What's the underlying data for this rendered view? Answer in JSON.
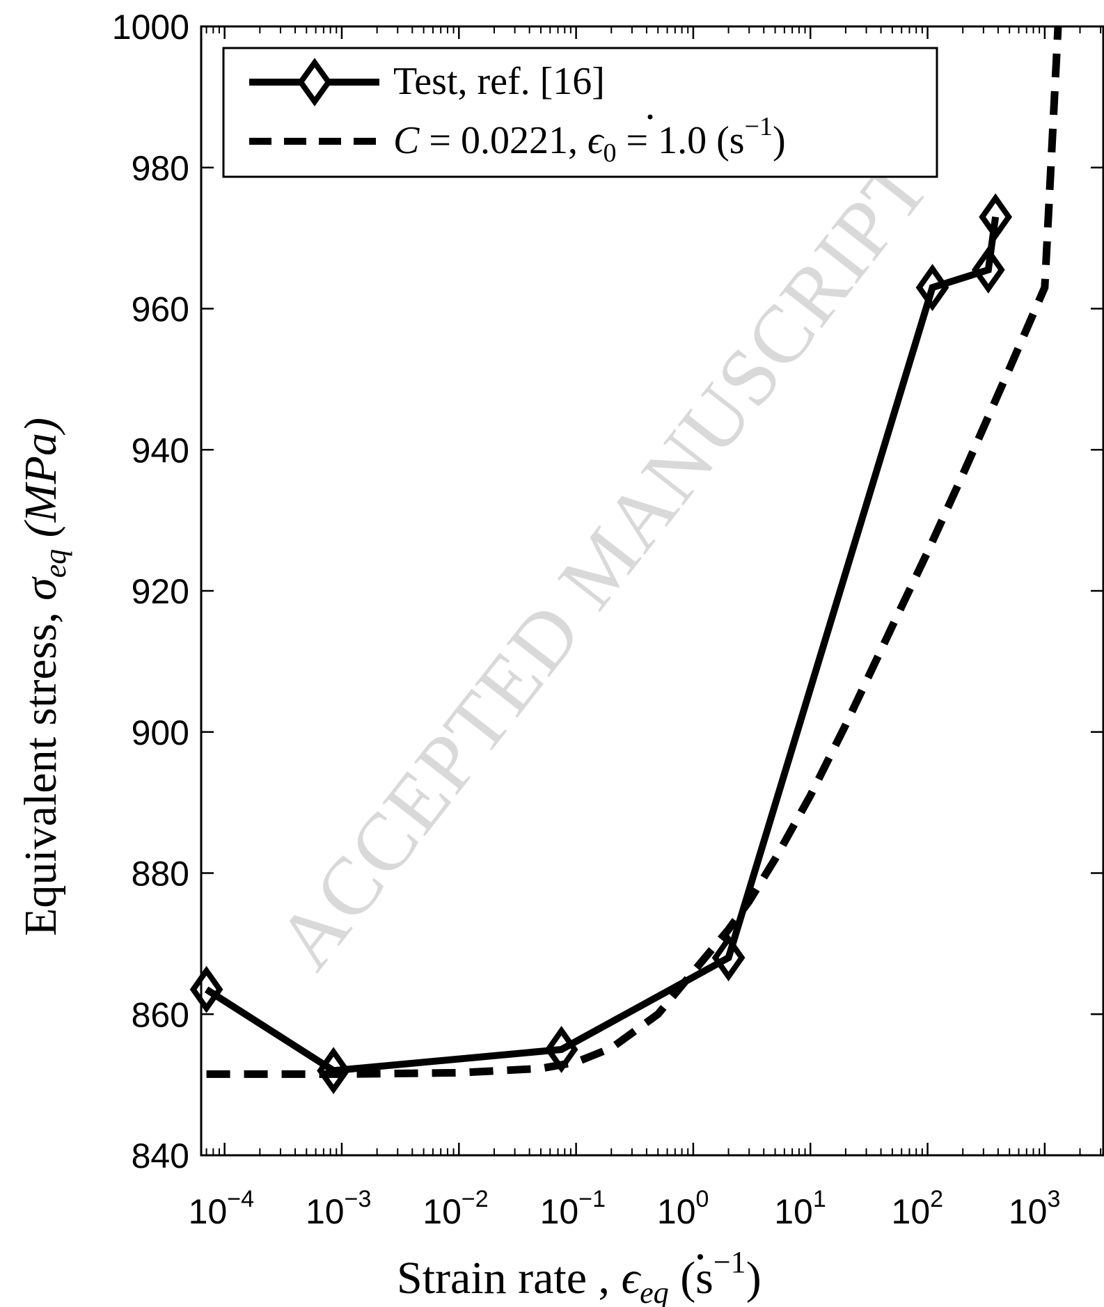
{
  "chart_data": {
    "type": "line",
    "x_scale": "log",
    "xlim": [
      6.31e-05,
      3162
    ],
    "ylim": [
      840,
      1000
    ],
    "xlabel": {
      "text": "Strain rate , ",
      "symbol": "ϵ",
      "sub": "eq",
      "unit_open": " (s",
      "unit_exp": "−1",
      "unit_close": ")"
    },
    "ylabel": {
      "text": "Equivalent stress, ",
      "symbol": "σ",
      "sub": "eq",
      "unit": " (MPa)"
    },
    "x_ticks": [
      {
        "value": 0.0001,
        "base": "10",
        "exp": "−4"
      },
      {
        "value": 0.001,
        "base": "10",
        "exp": "−3"
      },
      {
        "value": 0.01,
        "base": "10",
        "exp": "−2"
      },
      {
        "value": 0.1,
        "base": "10",
        "exp": "−1"
      },
      {
        "value": 1,
        "base": "10",
        "exp": "0"
      },
      {
        "value": 10,
        "base": "10",
        "exp": "1"
      },
      {
        "value": 100,
        "base": "10",
        "exp": "2"
      },
      {
        "value": 1000,
        "base": "10",
        "exp": "3"
      }
    ],
    "y_ticks": [
      {
        "value": 840,
        "label": "840"
      },
      {
        "value": 860,
        "label": "860"
      },
      {
        "value": 880,
        "label": "880"
      },
      {
        "value": 900,
        "label": "900"
      },
      {
        "value": 920,
        "label": "920"
      },
      {
        "value": 940,
        "label": "940"
      },
      {
        "value": 960,
        "label": "960"
      },
      {
        "value": 980,
        "label": "980"
      },
      {
        "value": 1000,
        "label": "1000"
      }
    ],
    "grid": false,
    "legend_position": "top-left",
    "series": [
      {
        "name": "Test, ref. [16]",
        "style": "solid",
        "marker": "diamond",
        "color": "#000000",
        "x": [
          7e-05,
          0.00085,
          0.075,
          2.0,
          110,
          330,
          380
        ],
        "y": [
          863.5,
          852,
          855,
          868,
          963,
          965.5,
          973
        ]
      },
      {
        "name_parts": {
          "c": "C",
          "c_val": " = 0.0221,  ",
          "eps": "ϵ",
          "eps_sub": "0",
          "eps_val": " = 1.0 (s",
          "exp": "−1",
          "close": ")"
        },
        "style": "dashed",
        "marker": "none",
        "color": "#000000",
        "x": [
          7e-05,
          0.0001,
          0.001,
          0.01,
          0.05,
          0.1,
          0.2,
          0.5,
          1,
          2,
          3,
          5,
          10,
          20,
          50,
          100,
          200,
          500,
          1000,
          1300
        ],
        "y": [
          851.5,
          851.5,
          851.5,
          851.7,
          852.3,
          853.2,
          855.2,
          860,
          866,
          872,
          876,
          882,
          891,
          901,
          915,
          925.5,
          936.5,
          951.5,
          963,
          1000
        ]
      }
    ]
  },
  "watermark": "ACCEPTED MANUSCRIPT"
}
